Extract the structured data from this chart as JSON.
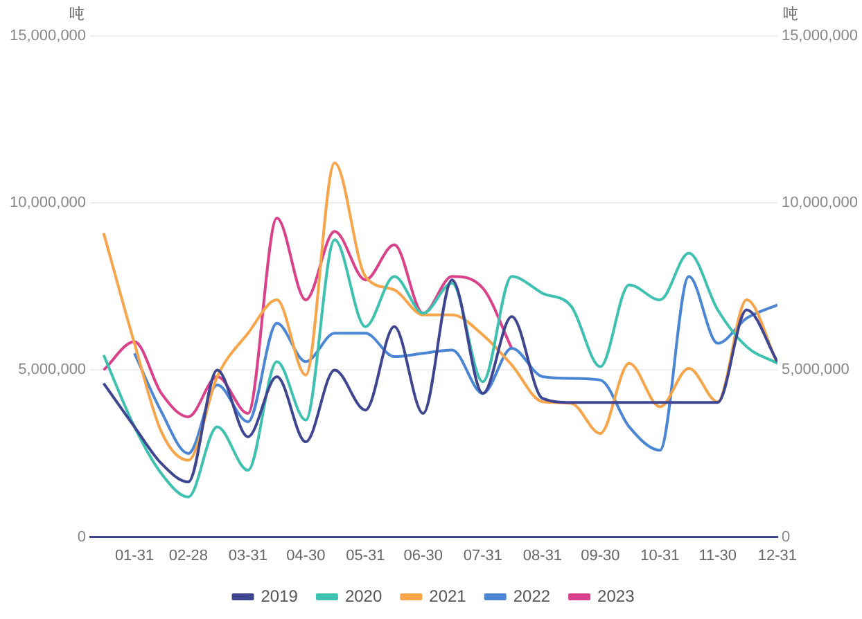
{
  "chart_data": {
    "type": "line",
    "ylabel": "吨",
    "y2label": "吨",
    "x": [
      "--01-15",
      "--01-31",
      "--02-14",
      "--02-28",
      "--03-15",
      "--03-31",
      "--04-15",
      "--04-30",
      "--05-15",
      "--05-31",
      "--06-15",
      "--06-30",
      "--07-15",
      "--07-31",
      "--08-15",
      "--08-31",
      "--09-15",
      "--09-30",
      "--10-15",
      "--10-31",
      "--11-15",
      "--11-30",
      "--12-15",
      "--12-31"
    ],
    "xlim": [
      "--01-08",
      "--12-31"
    ],
    "xticks": [
      {
        "value": "--01-31",
        "label": "01-31"
      },
      {
        "value": "--02-28",
        "label": "02-28"
      },
      {
        "value": "--03-31",
        "label": "03-31"
      },
      {
        "value": "--04-30",
        "label": "04-30"
      },
      {
        "value": "--05-31",
        "label": "05-31"
      },
      {
        "value": "--06-30",
        "label": "06-30"
      },
      {
        "value": "--07-31",
        "label": "07-31"
      },
      {
        "value": "--08-31",
        "label": "08-31"
      },
      {
        "value": "--09-30",
        "label": "09-30"
      },
      {
        "value": "--10-31",
        "label": "10-31"
      },
      {
        "value": "--11-30",
        "label": "11-30"
      },
      {
        "value": "--12-31",
        "label": "12-31"
      }
    ],
    "ylim": [
      0,
      15000000
    ],
    "yticks": [
      {
        "value": 0,
        "label": "0"
      },
      {
        "value": 5000000,
        "label": "5,000,000"
      },
      {
        "value": 10000000,
        "label": "10,000,000"
      },
      {
        "value": 15000000,
        "label": "15,000,000"
      }
    ],
    "y2lim": [
      0,
      15000000
    ],
    "y2ticks": [
      {
        "value": 0,
        "label": "0"
      },
      {
        "value": 5000000,
        "label": "5,000,000"
      },
      {
        "value": 10000000,
        "label": "10,000,000"
      },
      {
        "value": 15000000,
        "label": "15,000,000"
      }
    ],
    "grid": "y",
    "legend": "bottom",
    "marker": "none",
    "line_style": "solid",
    "series": [
      {
        "name": "2019",
        "color": "#3f4691",
        "values": [
          4600000,
          3300000,
          2200000,
          1650000,
          5000000,
          3000000,
          4800000,
          2850000,
          5000000,
          3800000,
          6300000,
          3700000,
          7700000,
          4300000,
          6600000,
          4150000,
          4030000,
          4030000,
          4030000,
          4030000,
          4030000,
          4030000,
          6800000,
          5250000
        ]
      },
      {
        "name": "2020",
        "color": "#3ec1b0",
        "values": [
          5450000,
          3300000,
          1900000,
          1200000,
          3300000,
          2000000,
          5250000,
          3500000,
          8900000,
          6300000,
          7800000,
          6700000,
          7600000,
          4650000,
          7800000,
          7300000,
          6900000,
          5100000,
          7550000,
          7100000,
          8500000,
          6800000,
          5700000,
          5200000
        ]
      },
      {
        "name": "2021",
        "color": "#f6a54b",
        "values": [
          9100000,
          5800000,
          3150000,
          2300000,
          4800000,
          6100000,
          7100000,
          4850000,
          11200000,
          7800000,
          7400000,
          6650000,
          6650000,
          6050000,
          5150000,
          4050000,
          4000000,
          3100000,
          5200000,
          3900000,
          5050000,
          4050000,
          7100000,
          5200000
        ]
      },
      {
        "name": "2022",
        "color": "#4a86d4",
        "values": [
          null,
          5500000,
          3750000,
          2500000,
          4550000,
          3450000,
          6400000,
          5250000,
          6100000,
          6100000,
          5400000,
          5500000,
          5600000,
          4300000,
          5650000,
          4800000,
          4750000,
          4700000,
          3300000,
          2600000,
          7800000,
          5800000,
          6550000,
          6950000
        ]
      },
      {
        "name": "2023",
        "color": "#d9418a",
        "values": [
          5000000,
          5850000,
          4300000,
          3600000,
          4800000,
          3700000,
          9550000,
          7100000,
          9150000,
          7700000,
          8750000,
          6700000,
          7800000,
          7450000,
          5650000,
          null,
          null,
          null,
          null,
          null,
          null,
          null,
          null,
          null
        ]
      }
    ]
  }
}
